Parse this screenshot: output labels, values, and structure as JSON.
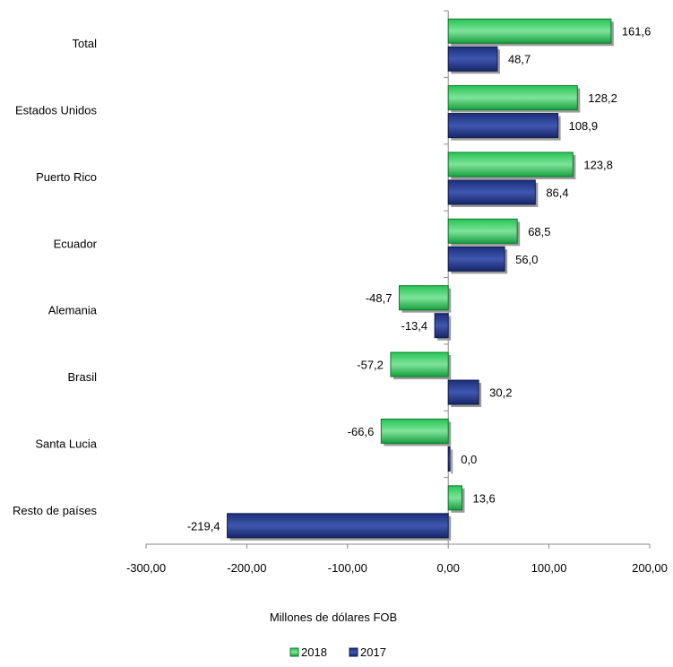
{
  "chart_data": {
    "type": "bar",
    "orientation": "horizontal",
    "categories": [
      "Total",
      "Estados Unidos",
      "Puerto Rico",
      "Ecuador",
      "Alemania",
      "Brasil",
      "Santa Lucia",
      "Resto de países"
    ],
    "series": [
      {
        "name": "2018",
        "color": "#1fb04a",
        "values": [
          161.6,
          128.2,
          123.8,
          68.5,
          -48.7,
          -57.2,
          -66.6,
          13.6
        ],
        "labels": [
          "161,6",
          "128,2",
          "123,8",
          "68,5",
          "-48,7",
          "-57,2",
          "-66,6",
          "13,6"
        ]
      },
      {
        "name": "2017",
        "color": "#1f3380",
        "values": [
          48.7,
          108.9,
          86.4,
          56.0,
          -13.4,
          30.2,
          0.0,
          -219.4
        ],
        "labels": [
          "48,7",
          "108,9",
          "86,4",
          "56,0",
          "-13,4",
          "30,2",
          "0,0",
          "-219,4"
        ]
      }
    ],
    "xlim": [
      -300,
      200
    ],
    "ticks": [
      -300,
      -200,
      -100,
      0,
      100,
      200
    ],
    "tick_labels": [
      "-300,00",
      "-200,00",
      "-100,00",
      "0,00",
      "100,00",
      "200,00"
    ],
    "xlabel": "Millones de dólares FOB",
    "ylabel": "",
    "title": "",
    "legend_position": "bottom",
    "grid": false
  }
}
